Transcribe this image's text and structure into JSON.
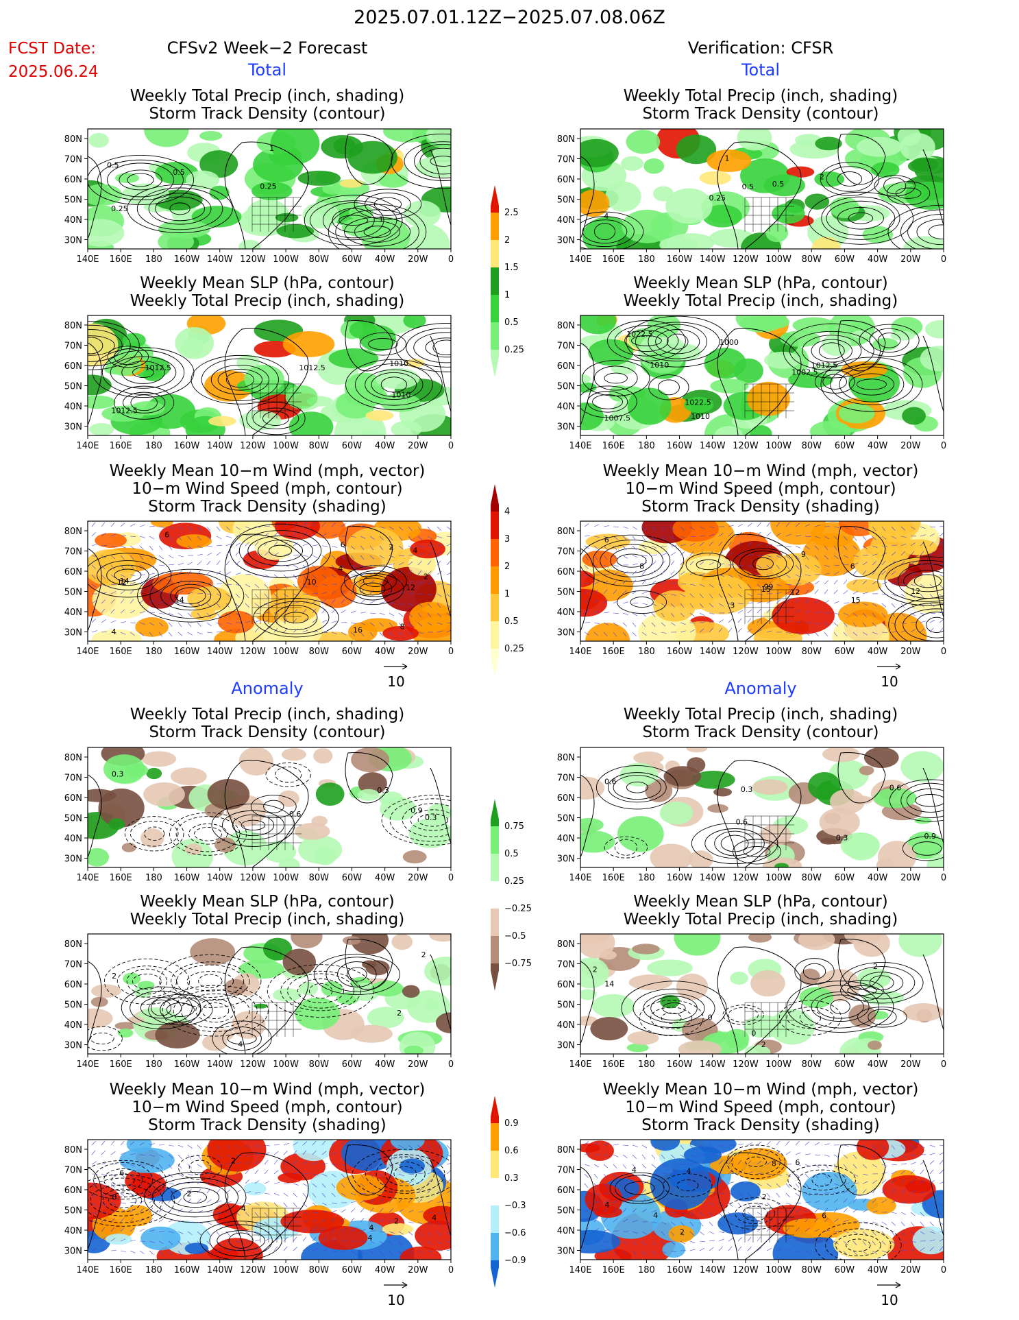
{
  "header": {
    "title": "2025.07.01.12Z−2025.07.08.06Z",
    "fcst_date_label": "FCST Date:",
    "fcst_date_value": "2025.06.24",
    "left_title": "CFSv2 Week−2 Forecast",
    "right_title": "Verification: CFSR"
  },
  "sections": {
    "total": "Total",
    "anomaly": "Anomaly"
  },
  "panel_titles": {
    "precip_storm": [
      "Weekly Total Precip (inch, shading)",
      "Storm Track Density (contour)"
    ],
    "slp_precip": [
      "Weekly Mean SLP (hPa, contour)",
      "Weekly Total Precip (inch, shading)"
    ],
    "wind_storm": [
      "Weekly Mean 10−m Wind (mph, vector)",
      "10−m Wind Speed (mph, contour)",
      "Storm Track Density (shading)"
    ]
  },
  "axes": {
    "lat_ticks": [
      "80N",
      "70N",
      "60N",
      "50N",
      "40N",
      "30N"
    ],
    "lon_ticks": [
      "140E",
      "160E",
      "180",
      "160W",
      "140W",
      "120W",
      "100W",
      "80W",
      "60W",
      "40W",
      "20W",
      "0"
    ]
  },
  "vector_reference": "10",
  "colors": {
    "precip_greens": [
      "#b4fab4",
      "#78f078",
      "#37d23c",
      "#1ea01e"
    ],
    "precip_hot": [
      "#ffe878",
      "#ffa000",
      "#e11400"
    ],
    "storm_scale": [
      "#fff5a0",
      "#ffc83c",
      "#ff9b00",
      "#ff6400",
      "#e11400",
      "#a50000"
    ],
    "anom_brown": [
      "#e6c8b4",
      "#b48c78",
      "#785040"
    ],
    "wind_anom_red": [
      "#ffe878",
      "#ffa000",
      "#e11400"
    ],
    "wind_anom_blue": [
      "#b4f0fa",
      "#50b4f0",
      "#1464d2"
    ]
  },
  "colorbars": [
    {
      "id": "precip-total",
      "labels": [
        "2.5",
        "2",
        "1.5",
        "1",
        "0.5",
        "0.25"
      ]
    },
    {
      "id": "storm-total",
      "labels": [
        "4",
        "3",
        "2",
        "1",
        "0.5",
        "0.25"
      ]
    },
    {
      "id": "precip-anomaly",
      "labels": [
        "0.75",
        "0.5",
        "0.25",
        "−0.25",
        "−0.5",
        "−0.75"
      ]
    },
    {
      "id": "storm-anomaly",
      "labels": [
        "0.9",
        "0.6",
        "0.3",
        "−0.3",
        "−0.6",
        "−0.9"
      ]
    }
  ],
  "contour_labels": {
    "p1L": [
      "0.25",
      "0.5",
      "1",
      "0.5",
      "0.25",
      "1"
    ],
    "p1R": [
      "4",
      "0.5",
      "0.25",
      "2",
      "0.5",
      "1"
    ],
    "p2L": [
      "1012.5",
      "1010",
      "1010",
      "1012.5",
      "1012.5"
    ],
    "p2R": [
      "1007.5",
      "1010",
      "1000",
      "1002.5",
      "1012.5",
      "1010",
      "1022.5",
      "1022.5"
    ],
    "p3L": [
      "4",
      "6",
      "8",
      "12",
      "4",
      "14",
      "2",
      "4",
      "2",
      "10",
      "6",
      "12",
      "16",
      "14"
    ],
    "p3R": [
      "6",
      "8",
      "3",
      "99",
      "6",
      "12",
      "9",
      "12",
      "15",
      "15"
    ],
    "p4L": [
      "0.3",
      "0.6",
      "0.9",
      "0.3",
      "0.3"
    ],
    "p4R": [
      "0.6",
      "0.9",
      "0.3",
      "0.6",
      "0.6",
      "0.3"
    ],
    "p5L": [
      "2",
      "4",
      "2",
      "2"
    ],
    "p5R": [
      "14",
      "2",
      "0",
      "0",
      "2",
      "2"
    ],
    "p6L": [
      "0",
      "2",
      "4",
      "4",
      "6",
      "2",
      "4",
      "2",
      "4"
    ],
    "p6R": [
      "4",
      "6",
      "2",
      "2",
      "4",
      "4",
      "4",
      "8",
      "6"
    ]
  }
}
